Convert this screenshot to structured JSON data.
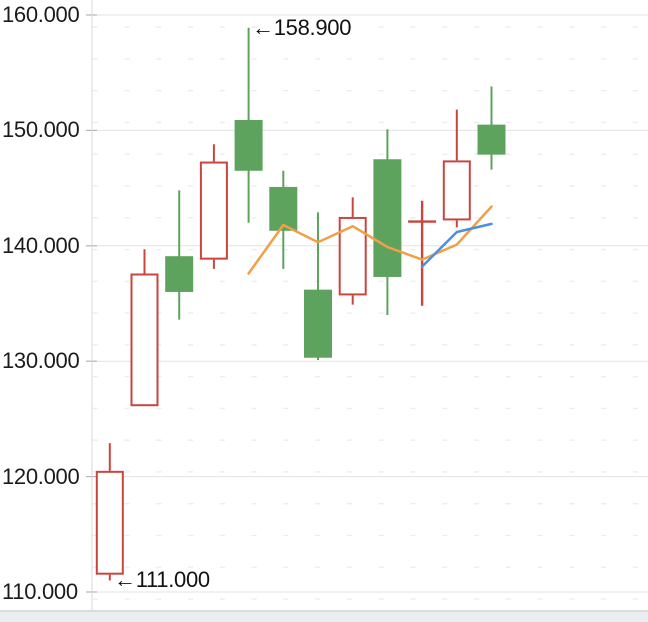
{
  "chart_data": {
    "type": "candlestick",
    "title": "",
    "y_axis": {
      "tick_labels": [
        "160.000",
        "150.000",
        "140.000",
        "130.000",
        "120.000",
        "110.000"
      ],
      "tick_values": [
        160,
        150,
        140,
        130,
        120,
        110
      ],
      "ylim": [
        108.3,
        161.3
      ],
      "grid": "on"
    },
    "candles": [
      {
        "open": 111.5,
        "high": 122.9,
        "low": 111.0,
        "close": 120.5,
        "color": "red"
      },
      {
        "open": 126.1,
        "high": 139.7,
        "low": 126.1,
        "close": 137.6,
        "color": "red"
      },
      {
        "open": 139.1,
        "high": 144.8,
        "low": 133.6,
        "close": 136.0,
        "color": "green"
      },
      {
        "open": 138.8,
        "high": 148.8,
        "low": 138.0,
        "close": 147.3,
        "color": "red"
      },
      {
        "open": 150.9,
        "high": 158.9,
        "low": 142.0,
        "close": 146.5,
        "color": "green"
      },
      {
        "open": 145.1,
        "high": 146.5,
        "low": 138.0,
        "close": 141.3,
        "color": "green"
      },
      {
        "open": 136.2,
        "high": 142.9,
        "low": 130.1,
        "close": 130.3,
        "color": "green"
      },
      {
        "open": 135.7,
        "high": 144.2,
        "low": 134.9,
        "close": 142.5,
        "color": "red"
      },
      {
        "open": 147.5,
        "high": 150.1,
        "low": 134.0,
        "close": 137.3,
        "color": "green"
      },
      {
        "open": 142.1,
        "high": 143.9,
        "low": 134.8,
        "close": 142.1,
        "color": "red"
      },
      {
        "open": 142.2,
        "high": 151.8,
        "low": 141.6,
        "close": 147.4,
        "color": "red"
      },
      {
        "open": 150.5,
        "high": 153.8,
        "low": 146.6,
        "close": 147.9,
        "color": "green"
      }
    ],
    "ma_lines": [
      {
        "name": "ma-orange",
        "color": "#F0A046",
        "start_index": 4,
        "values": [
          137.6,
          141.8,
          140.3,
          141.7,
          139.9,
          138.8,
          140.1,
          143.4
        ]
      },
      {
        "name": "ma-blue",
        "color": "#4B8FE2",
        "start_index": 9,
        "values": [
          138.2,
          141.2,
          141.9
        ]
      }
    ],
    "annotations": [
      {
        "text": "←158.900",
        "value": 158.9,
        "anchor_candle": 5
      },
      {
        "text": "←111.000",
        "value": 111.0,
        "anchor_candle": 1
      }
    ],
    "colors": {
      "up_red": "#C9453E",
      "down_green": "#5EA35D",
      "grid_major": "#E3E3E3",
      "grid_minor_dot": "#EBEBEB",
      "axis_line": "#D8D8D8",
      "tick_mark": "#B5B5B5",
      "label_text": "#1b1b1b",
      "bottom_bar": "#EAEDF2"
    }
  }
}
